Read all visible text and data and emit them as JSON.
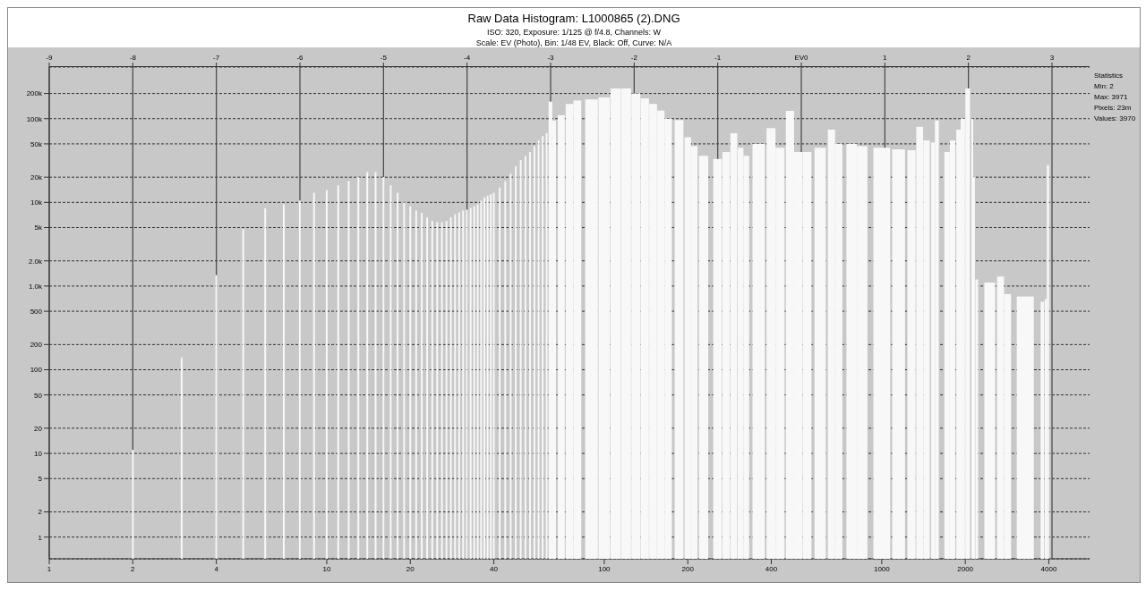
{
  "chart_data": {
    "type": "bar",
    "title": "Raw Data Histogram: L1000865 (2).DNG",
    "subtitle": "ISO: 320, Exposure: 1/125 @ f/4.8, Channels: W",
    "annotations": [
      "Scale: EV (Photo), Bin: 1/48 EV, Black: Off, Curve: N/A",
      "Statistics",
      "Min: 2",
      "Max: 3971",
      "Pixels: 23m",
      "Values: 3970"
    ],
    "x": [
      2,
      3,
      4,
      5,
      6,
      7,
      8,
      9,
      10,
      11,
      12,
      13,
      14,
      15,
      16,
      17,
      18,
      19,
      20,
      21,
      22,
      23,
      24,
      25,
      26,
      27,
      28,
      29,
      30,
      31,
      32,
      33,
      34,
      35,
      36,
      37,
      38,
      39,
      40,
      42,
      44,
      46,
      48,
      50,
      52,
      54,
      56,
      58,
      60,
      62,
      64,
      66,
      70,
      75,
      80,
      90,
      100,
      110,
      120,
      130,
      140,
      150,
      160,
      170,
      186,
      200,
      211,
      228,
      256,
      275,
      293,
      310,
      325,
      360,
      399,
      430,
      467,
      500,
      538,
      600,
      659,
      700,
      779,
      850,
      1000,
      1150,
      1280,
      1370,
      1450,
      1530,
      1580,
      1720,
      1800,
      1890,
      1960,
      2040,
      2120,
      2150,
      2200,
      2450,
      2680,
      2840,
      3290,
      3790,
      3900,
      3971
    ],
    "values": [
      11,
      140,
      1350,
      4800,
      8500,
      9500,
      10500,
      13000,
      14000,
      16000,
      18000,
      20000,
      23000,
      23000,
      20000,
      16000,
      13000,
      10000,
      9000,
      8000,
      7500,
      6600,
      6000,
      5800,
      5800,
      6000,
      6600,
      7200,
      7600,
      8000,
      8200,
      8600,
      9000,
      9500,
      10500,
      11500,
      12000,
      12500,
      13000,
      15000,
      18000,
      22000,
      27000,
      32000,
      36000,
      40000,
      47000,
      55000,
      62000,
      67000,
      160000,
      95000,
      110000,
      150000,
      165000,
      170000,
      180000,
      230000,
      230000,
      200000,
      175000,
      150000,
      125000,
      100000,
      96000,
      60000,
      47000,
      36000,
      33000,
      40000,
      67000,
      45000,
      36000,
      50000,
      77000,
      45000,
      124000,
      40000,
      40000,
      45000,
      74000,
      50000,
      50000,
      47000,
      45000,
      43000,
      42000,
      80000,
      55000,
      52000,
      95000,
      40000,
      55000,
      74000,
      100000,
      230000,
      100000,
      20000,
      1200,
      1100,
      1300,
      800,
      750,
      650,
      700,
      28000
    ],
    "color": "#f8f8f8",
    "log": "xy",
    "xlim": [
      1,
      5610
    ],
    "xticks": [
      1,
      2,
      4,
      10,
      20,
      40,
      100,
      200,
      400,
      1000,
      2000,
      4000
    ],
    "x2lim": [
      -9,
      3.45
    ],
    "x2ticks": [
      -9,
      -8,
      -7,
      -6,
      -5,
      -4,
      -3,
      -2,
      -1,
      {
        "value": 0,
        "label": "EV0"
      },
      1,
      2,
      3
    ],
    "ylim": [
      0.55,
      414000
    ],
    "yticks": [
      1,
      2,
      5,
      10,
      20,
      50,
      100,
      200,
      500,
      {
        "value": 1000,
        "label": "1.0k"
      },
      {
        "value": 2000,
        "label": "2.0k"
      },
      {
        "value": 5000,
        "label": "5k"
      },
      {
        "value": 10000,
        "label": "10k"
      },
      {
        "value": 20000,
        "label": "20k"
      },
      {
        "value": 50000,
        "label": "50k"
      },
      {
        "value": 100000,
        "label": "100k"
      },
      {
        "value": 200000,
        "label": "200k"
      }
    ],
    "grid": true
  }
}
